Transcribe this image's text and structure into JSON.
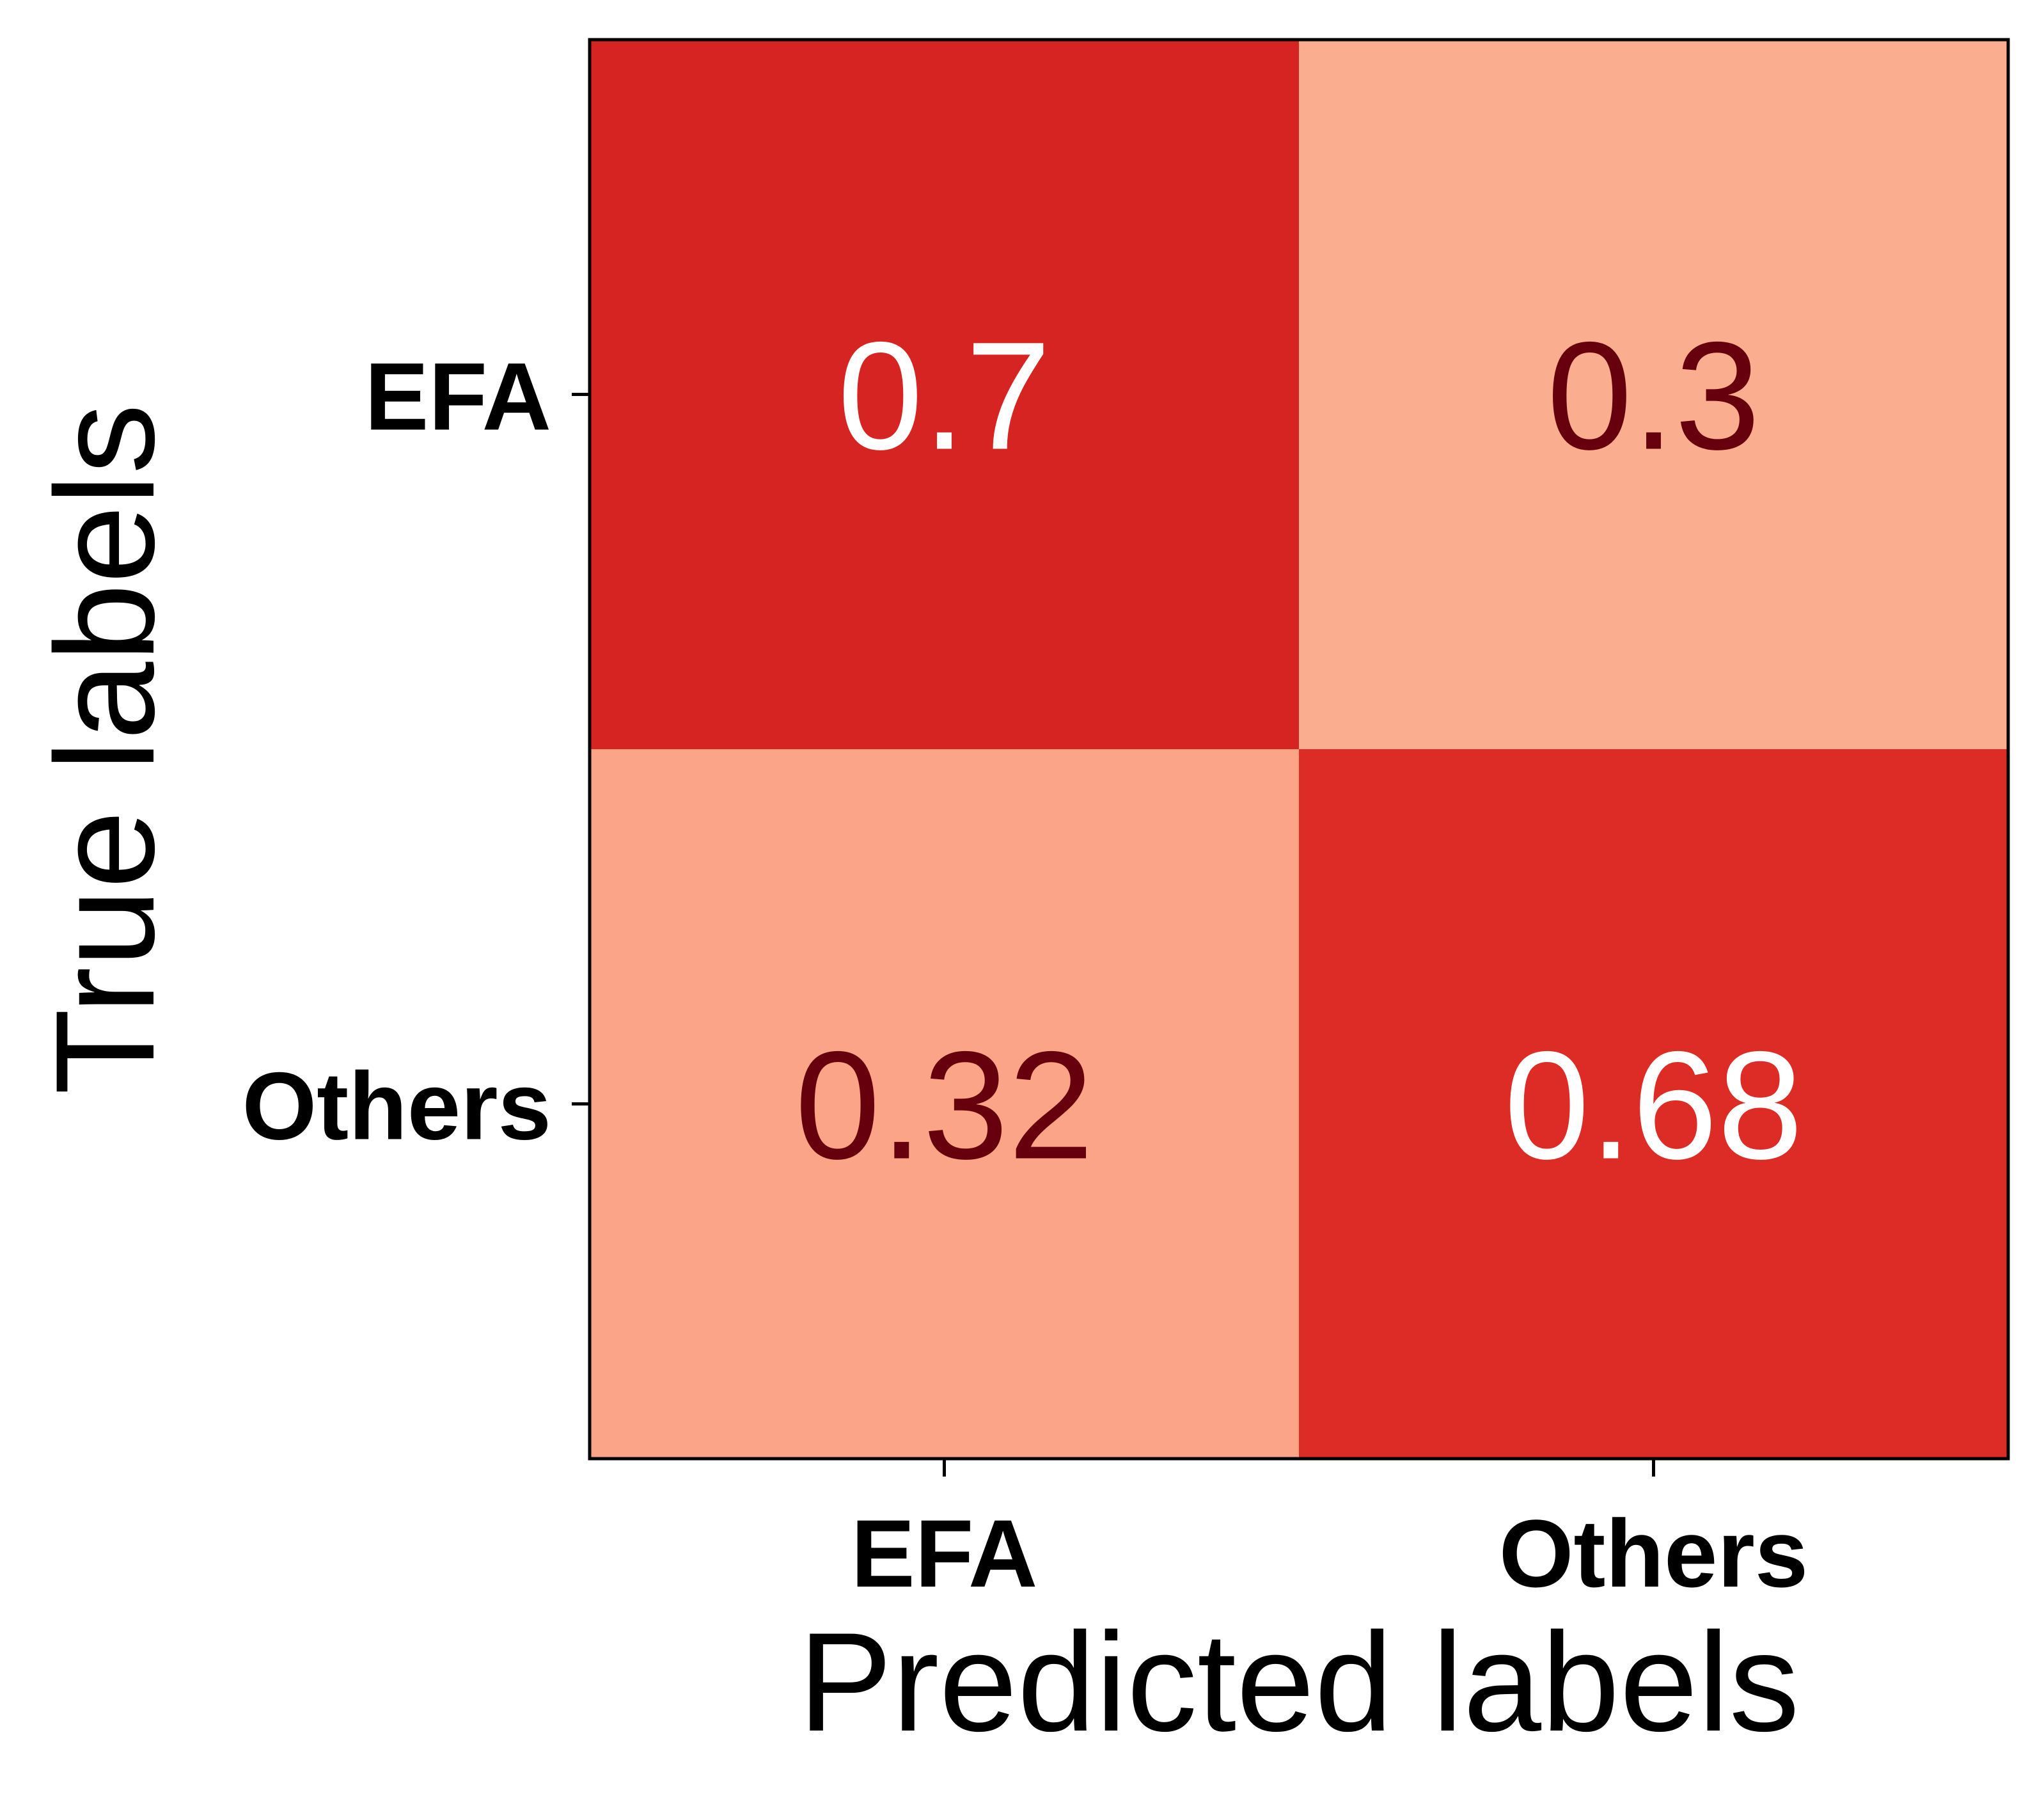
{
  "chart_data": {
    "type": "heatmap",
    "xlabel": "Predicted labels",
    "ylabel": "True labels",
    "x_categories": [
      "EFA",
      "Others"
    ],
    "y_categories": [
      "EFA",
      "Others"
    ],
    "values": [
      [
        0.7,
        0.3
      ],
      [
        0.32,
        0.68
      ]
    ],
    "value_labels": [
      [
        "0.7",
        "0.3"
      ],
      [
        "0.32",
        "0.68"
      ]
    ],
    "colormap": "Reds",
    "colors": {
      "high": "#d62422",
      "high_alt": "#dd2b25",
      "low": "#fbad8f",
      "low_alt": "#fba487",
      "text_on_high": "#ffffff",
      "text_on_low": "#67000d"
    }
  }
}
